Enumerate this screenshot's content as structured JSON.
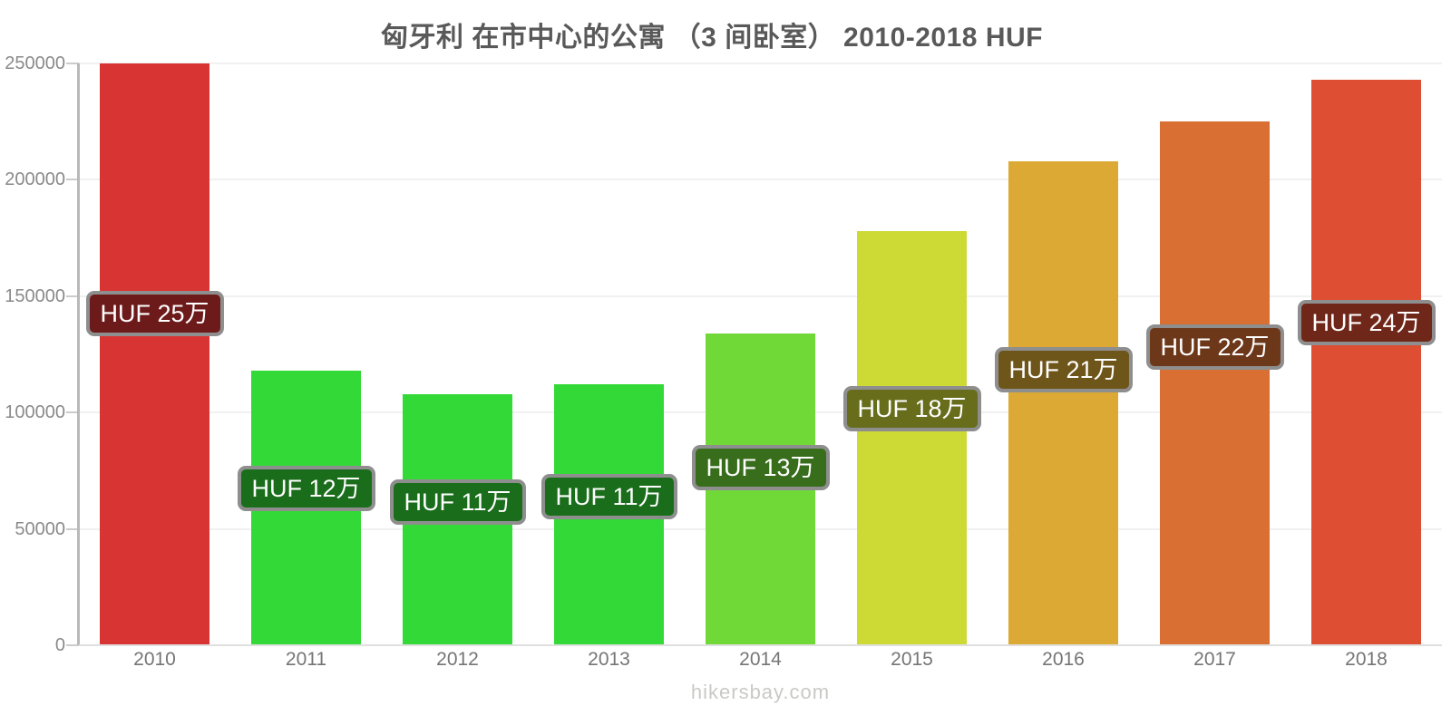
{
  "page": {
    "title": "匈牙利 在市中心的公寓 （3 间卧室） 2010-2018 HUF",
    "watermark": "hikersbay.com"
  },
  "chart_data": {
    "type": "bar",
    "title": "匈牙利 在市中心的公寓 （3 间卧室） 2010-2018 HUF",
    "categories": [
      "2010",
      "2011",
      "2012",
      "2013",
      "2014",
      "2015",
      "2016",
      "2017",
      "2018"
    ],
    "values": [
      250000,
      118000,
      108000,
      112000,
      134000,
      178000,
      208000,
      225000,
      243000
    ],
    "bar_labels": [
      "HUF 25万",
      "HUF 12万",
      "HUF 11万",
      "HUF 11万",
      "HUF 13万",
      "HUF 18万",
      "HUF 21万",
      "HUF 22万",
      "HUF 24万"
    ],
    "bar_colors": [
      "#d93434",
      "#33d936",
      "#33d936",
      "#33d936",
      "#70d938",
      "#cdd935",
      "#dcaa34",
      "#d96f33",
      "#de4e32"
    ],
    "xlabel": "",
    "ylabel": "",
    "ylim": [
      0,
      250000
    ],
    "ytick_step": 50000,
    "ytick_labels": [
      "0",
      "50000",
      "100000",
      "150000",
      "200000",
      "250000"
    ],
    "grid": true,
    "legend": false,
    "colors": {
      "title_text": "#595959",
      "axis_line": "#b9b9b9",
      "gridline": "#f1f1f1",
      "baseline": "#e0e0e0",
      "tick": "#cccccc",
      "ytick_text": "#8a8a8a",
      "xtick_text": "#757575",
      "watermark_text": "#c9c9c4",
      "badge_border": "#8e8e8e",
      "badge_text": "#ffffff"
    }
  }
}
